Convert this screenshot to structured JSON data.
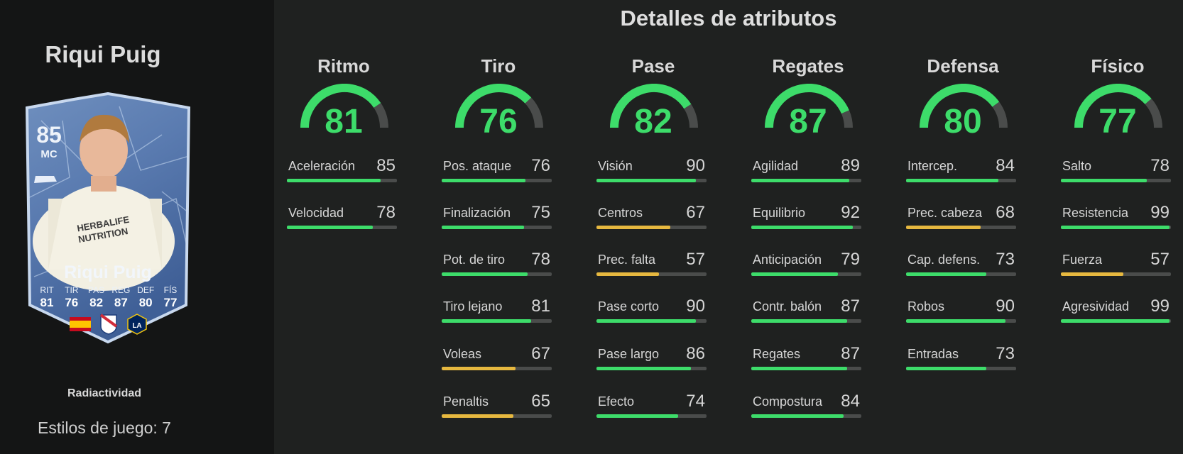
{
  "sidebar": {
    "player_name": "Riqui Puig",
    "card": {
      "rating": "85",
      "position": "MC",
      "name": "Riqui Puig",
      "stats": [
        {
          "label": "RIT",
          "value": "81"
        },
        {
          "label": "TIR",
          "value": "76"
        },
        {
          "label": "PAS",
          "value": "82"
        },
        {
          "label": "REG",
          "value": "87"
        },
        {
          "label": "DEF",
          "value": "80"
        },
        {
          "label": "FÍS",
          "value": "77"
        }
      ],
      "badges": [
        "spain-flag-icon",
        "mls-logo-icon",
        "la-galaxy-logo-icon"
      ],
      "kit_text": "HERBALIFE NUTRITION",
      "club_badge_text": "LA"
    },
    "card_subtitle": "Radiactividad",
    "playstyles": "Estilos de juego: 7"
  },
  "main": {
    "title": "Detalles de atributos",
    "colors": {
      "high": "#3ddc6a",
      "mid": "#e6b83f",
      "track": "#4a4c4b"
    },
    "categories": [
      {
        "name": "Ritmo",
        "value": "81",
        "attrs": [
          {
            "name": "Aceleración",
            "value": "85"
          },
          {
            "name": "Velocidad",
            "value": "78"
          }
        ]
      },
      {
        "name": "Tiro",
        "value": "76",
        "attrs": [
          {
            "name": "Pos. ataque",
            "value": "76"
          },
          {
            "name": "Finalización",
            "value": "75"
          },
          {
            "name": "Pot. de tiro",
            "value": "78"
          },
          {
            "name": "Tiro lejano",
            "value": "81"
          },
          {
            "name": "Voleas",
            "value": "67"
          },
          {
            "name": "Penaltis",
            "value": "65"
          }
        ]
      },
      {
        "name": "Pase",
        "value": "82",
        "attrs": [
          {
            "name": "Visión",
            "value": "90"
          },
          {
            "name": "Centros",
            "value": "67"
          },
          {
            "name": "Prec. falta",
            "value": "57"
          },
          {
            "name": "Pase corto",
            "value": "90"
          },
          {
            "name": "Pase largo",
            "value": "86"
          },
          {
            "name": "Efecto",
            "value": "74"
          }
        ]
      },
      {
        "name": "Regates",
        "value": "87",
        "attrs": [
          {
            "name": "Agilidad",
            "value": "89"
          },
          {
            "name": "Equilibrio",
            "value": "92"
          },
          {
            "name": "Anticipación",
            "value": "79"
          },
          {
            "name": "Contr. balón",
            "value": "87"
          },
          {
            "name": "Regates",
            "value": "87"
          },
          {
            "name": "Compostura",
            "value": "84"
          }
        ]
      },
      {
        "name": "Defensa",
        "value": "80",
        "attrs": [
          {
            "name": "Intercep.",
            "value": "84"
          },
          {
            "name": "Prec. cabeza",
            "value": "68"
          },
          {
            "name": "Cap. defens.",
            "value": "73"
          },
          {
            "name": "Robos",
            "value": "90"
          },
          {
            "name": "Entradas",
            "value": "73"
          }
        ]
      },
      {
        "name": "Físico",
        "value": "77",
        "attrs": [
          {
            "name": "Salto",
            "value": "78"
          },
          {
            "name": "Resistencia",
            "value": "99"
          },
          {
            "name": "Fuerza",
            "value": "57"
          },
          {
            "name": "Agresividad",
            "value": "99"
          }
        ]
      }
    ]
  }
}
